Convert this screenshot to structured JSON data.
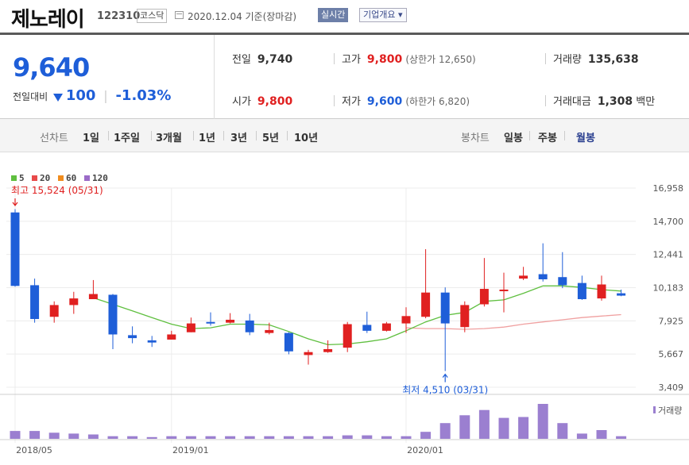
{
  "header": {
    "company_name": "제노레이",
    "code": "122310",
    "market": "코스닥",
    "date_text": "2020.12.04  기준(장마감)",
    "realtime_label": "실시간",
    "overview_label": "기업개요 ▾"
  },
  "price": {
    "current": "9,640",
    "change_label": "전일대비",
    "change_value": "100",
    "change_pct": "-1.03%"
  },
  "stats": {
    "prev_label": "전일",
    "prev_value": "9,740",
    "high_label": "고가",
    "high_value": "9,800",
    "upper_limit_text": "(상한가 12,650)",
    "volume_label": "거래량",
    "volume_value": "135,638",
    "open_label": "시가",
    "open_value": "9,800",
    "low_label": "저가",
    "low_value": "9,600",
    "lower_limit_text": "(하한가 6,820)",
    "amount_label": "거래대금",
    "amount_value": "1,308",
    "amount_unit": "백만"
  },
  "period_bar": {
    "line_label": "선차트",
    "line_items": [
      "1일",
      "1주일",
      "3개월",
      "1년",
      "3년",
      "5년",
      "10년"
    ],
    "candle_label": "봉차트",
    "candle_items": [
      "일봉",
      "주봉",
      "월봉"
    ],
    "active_candle": "월봉"
  },
  "colors": {
    "up": "#e02020",
    "down": "#1e5ed8",
    "ma5": "#5fbf3f",
    "ma20": "#e84a4a",
    "ma60": "#f08c1e",
    "ma120": "#9b6bc8",
    "volume": "#9b7fd0"
  },
  "chart_data": {
    "type": "candlestick",
    "legend": [
      "5",
      "20",
      "60",
      "120"
    ],
    "y_ticks": [
      "16,958",
      "14,700",
      "12,441",
      "10,183",
      "7,925",
      "5,667",
      "3,409"
    ],
    "ylim": [
      3409,
      16958
    ],
    "x_tick_labels": [
      {
        "label": "2018/05",
        "index": 0
      },
      {
        "label": "2019/01",
        "index": 8
      },
      {
        "label": "2020/01",
        "index": 20
      }
    ],
    "high_annotation": {
      "text": "최고 15,524 (05/31)",
      "index": 0
    },
    "low_annotation": {
      "text": "최저 4,510 (03/31)",
      "index": 22
    },
    "volume_label": "거래량",
    "candles": [
      {
        "o": 15300,
        "h": 15524,
        "c": 10300,
        "l": 10250
      },
      {
        "o": 10350,
        "h": 10800,
        "c": 8050,
        "l": 7800
      },
      {
        "o": 8200,
        "h": 9250,
        "c": 9000,
        "l": 7800
      },
      {
        "o": 9000,
        "h": 9900,
        "c": 9450,
        "l": 8400
      },
      {
        "o": 9400,
        "h": 10700,
        "c": 9750,
        "l": 9400
      },
      {
        "o": 9700,
        "h": 9750,
        "c": 7000,
        "l": 6000
      },
      {
        "o": 6950,
        "h": 7550,
        "c": 6750,
        "l": 6400
      },
      {
        "o": 6600,
        "h": 6900,
        "c": 6450,
        "l": 6150
      },
      {
        "o": 6650,
        "h": 7250,
        "c": 7000,
        "l": 6650
      },
      {
        "o": 7150,
        "h": 8150,
        "c": 7750,
        "l": 7150
      },
      {
        "o": 7850,
        "h": 8500,
        "c": 7800,
        "l": 7600
      },
      {
        "o": 7800,
        "h": 8450,
        "c": 8000,
        "l": 7750
      },
      {
        "o": 7950,
        "h": 8400,
        "c": 7150,
        "l": 6950
      },
      {
        "o": 7100,
        "h": 7800,
        "c": 7300,
        "l": 7000
      },
      {
        "o": 7100,
        "h": 7150,
        "c": 5850,
        "l": 5650
      },
      {
        "o": 5600,
        "h": 5950,
        "c": 5800,
        "l": 4950
      },
      {
        "o": 5800,
        "h": 6600,
        "c": 6000,
        "l": 5750
      },
      {
        "o": 6100,
        "h": 7850,
        "c": 7700,
        "l": 5800
      },
      {
        "o": 7650,
        "h": 8550,
        "c": 7250,
        "l": 7100
      },
      {
        "o": 7250,
        "h": 7850,
        "c": 7750,
        "l": 7200
      },
      {
        "o": 7750,
        "h": 8850,
        "c": 8250,
        "l": 7100
      },
      {
        "o": 8200,
        "h": 12800,
        "c": 9850,
        "l": 8100
      },
      {
        "o": 9850,
        "h": 10200,
        "c": 7750,
        "l": 4510
      },
      {
        "o": 7500,
        "h": 9250,
        "c": 9000,
        "l": 7150
      },
      {
        "o": 9050,
        "h": 12200,
        "c": 10100,
        "l": 8900
      },
      {
        "o": 10000,
        "h": 11200,
        "c": 10050,
        "l": 8500
      },
      {
        "o": 10800,
        "h": 11600,
        "c": 11000,
        "l": 10700
      },
      {
        "o": 11100,
        "h": 13200,
        "c": 10750,
        "l": 10600
      },
      {
        "o": 10900,
        "h": 12600,
        "c": 10350,
        "l": 10150
      },
      {
        "o": 10500,
        "h": 11000,
        "c": 9400,
        "l": 9350
      },
      {
        "o": 9450,
        "h": 11000,
        "c": 10400,
        "l": 9300
      },
      {
        "o": 9800,
        "h": 10050,
        "c": 9640,
        "l": 9600
      }
    ],
    "ma5": [
      null,
      null,
      null,
      null,
      9500,
      9050,
      8600,
      8150,
      7700,
      7400,
      7450,
      7700,
      7700,
      7650,
      7200,
      6700,
      6300,
      6350,
      6500,
      6700,
      7250,
      7850,
      8300,
      8500,
      9250,
      9350,
      9800,
      10300,
      10300,
      10200,
      10050,
      9950
    ],
    "ma20": [
      null,
      null,
      null,
      null,
      null,
      null,
      null,
      null,
      null,
      null,
      null,
      null,
      null,
      null,
      null,
      null,
      null,
      null,
      null,
      null,
      7450,
      7400,
      7400,
      7350,
      7400,
      7500,
      7700,
      7850,
      8000,
      8150,
      8250,
      8350
    ],
    "volumes": [
      9,
      9,
      7,
      6,
      5,
      3,
      3,
      2,
      3,
      3,
      3,
      3,
      3,
      3,
      3,
      3,
      3,
      4,
      4,
      3,
      3,
      8,
      18,
      27,
      33,
      24,
      25,
      40,
      18,
      6,
      10,
      3
    ]
  }
}
